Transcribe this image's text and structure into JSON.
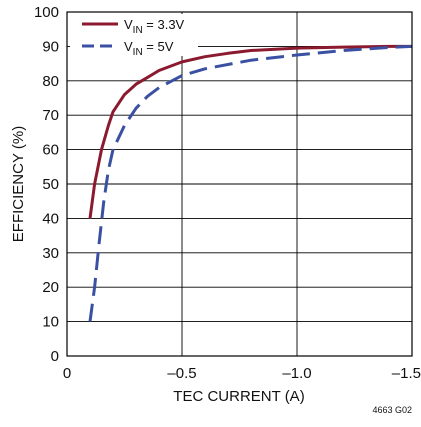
{
  "chart_data": {
    "type": "line",
    "xlabel": "TEC CURRENT (A)",
    "ylabel": "EFFICIENCY (%)",
    "xlim": [
      0,
      -1.5
    ],
    "ylim": [
      0,
      100
    ],
    "x_ticks": [
      0,
      -0.5,
      -1.0,
      -1.5
    ],
    "x_tick_labels": [
      "0",
      "–0.5",
      "–1.0",
      "–1.5"
    ],
    "y_ticks": [
      0,
      10,
      20,
      30,
      40,
      50,
      60,
      70,
      80,
      90,
      100
    ],
    "y_tick_labels": [
      "0",
      "10",
      "20",
      "30",
      "40",
      "50",
      "60",
      "70",
      "80",
      "90",
      "100"
    ],
    "grid": true,
    "legend_position": "top-left",
    "figure_id": "4663 G02",
    "series": [
      {
        "name": "V_IN = 3.3V",
        "legend": {
          "main": "V",
          "sub": "IN",
          "rest": " = 3.3V"
        },
        "color": "#8b1a2f",
        "dash": "solid",
        "x": [
          -0.1,
          -0.12,
          -0.15,
          -0.18,
          -0.2,
          -0.25,
          -0.3,
          -0.35,
          -0.4,
          -0.5,
          -0.6,
          -0.7,
          -0.8,
          -1.0,
          -1.2,
          -1.4,
          -1.5
        ],
        "y": [
          40,
          50,
          60,
          67,
          71,
          76,
          79,
          81,
          83,
          85.5,
          87,
          88,
          88.8,
          89.5,
          89.8,
          90,
          90
        ]
      },
      {
        "name": "V_IN = 5V",
        "legend": {
          "main": "V",
          "sub": "IN",
          "rest": " = 5V"
        },
        "color": "#3a51a3",
        "dash": "long-dash",
        "x": [
          -0.1,
          -0.12,
          -0.14,
          -0.16,
          -0.18,
          -0.2,
          -0.25,
          -0.3,
          -0.35,
          -0.4,
          -0.5,
          -0.6,
          -0.8,
          -1.0,
          -1.2,
          -1.4,
          -1.5
        ],
        "y": [
          10,
          20,
          33,
          45,
          54,
          60,
          67,
          72,
          75.5,
          78,
          81.5,
          83.5,
          86,
          87.5,
          88.8,
          89.7,
          90
        ]
      }
    ]
  }
}
